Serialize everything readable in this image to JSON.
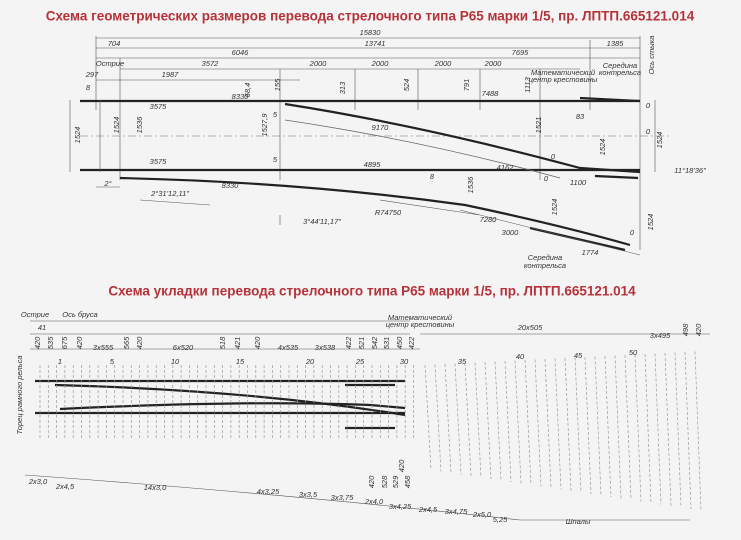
{
  "top_scheme": {
    "title": "Схема геометрических размеров перевода стрелочного типа Р65 марки 1/5, пр. ЛПТП.665121.014",
    "labels": [
      "704",
      "15830",
      "13741",
      "1385",
      "6046",
      "7695",
      "Острие",
      "3572",
      "1987",
      "2000",
      "2000",
      "2000",
      "2000",
      "297",
      "8",
      "155",
      "68,4",
      "8330",
      "313",
      "524",
      "791",
      "1113",
      "7488",
      "Математический",
      "центр крестовины",
      "Середина",
      "контрельса",
      "Ось стыка",
      "3575",
      "1524",
      "1524",
      "1536",
      "1527,9",
      "5",
      "9170",
      "1521",
      "83",
      "0",
      "1524",
      "0",
      "1524",
      "0",
      "3575",
      "5",
      "4895",
      "4162",
      "8",
      "1536",
      "0",
      "1100",
      "11°18'36\"",
      "2°",
      "2°31'12,11\"",
      "8330",
      "R74750",
      "3°44'11,17\"",
      "7280",
      "3000",
      "1524",
      "1524",
      "0",
      "Середина",
      "контрельса",
      "1774"
    ]
  },
  "bottom_scheme": {
    "title": "Схема укладки перевода стрелочного типа Р65 марки 1/5, пр. ЛПТП.665121.014",
    "labels": [
      "Острие",
      "Ось бруса",
      "41",
      "420",
      "535",
      "675",
      "420",
      "3x555",
      "565",
      "420",
      "6x520",
      "518",
      "421",
      "420",
      "4x535",
      "3x538",
      "422",
      "521",
      "542",
      "531",
      "450",
      "422",
      "Математический",
      "центр крестовины",
      "20x505",
      "3x495",
      "498",
      "420",
      "1",
      "5",
      "10",
      "15",
      "20",
      "25",
      "30",
      "35",
      "40",
      "45",
      "50",
      "Торец рамного рельса",
      "420",
      "528",
      "529",
      "458",
      "420",
      "2x3,0",
      "2x4,5",
      "14x3,0",
      "4x3,25",
      "3x3,5",
      "3x3,75",
      "2x4,0",
      "3x4,25",
      "2x4,5",
      "3x4,75",
      "2x5,0",
      "5,25",
      "Шпалы"
    ]
  }
}
